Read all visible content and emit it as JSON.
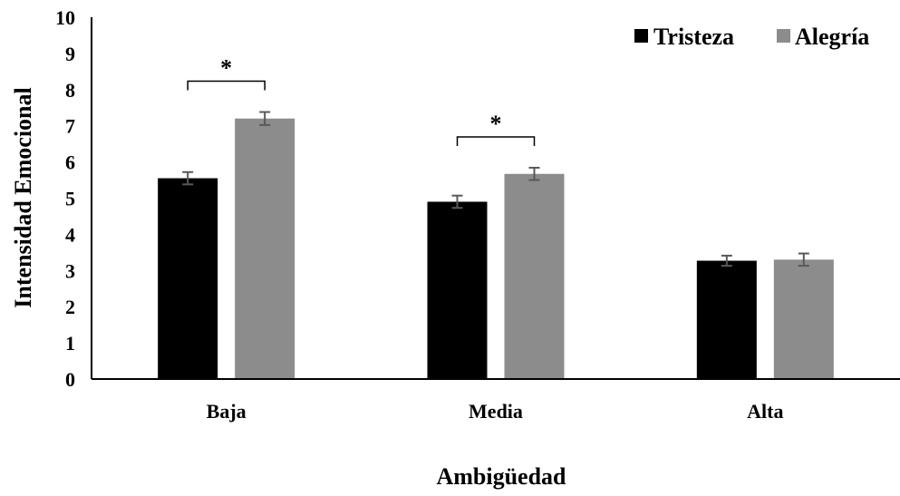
{
  "chart_data": {
    "type": "bar",
    "categories": [
      "Baja",
      "Media",
      "Alta"
    ],
    "series": [
      {
        "name": "Tristeza",
        "color": "#000000",
        "values": [
          5.55,
          4.9,
          3.27
        ],
        "errors": [
          0.17,
          0.17,
          0.14
        ]
      },
      {
        "name": "Alegría",
        "color": "#8c8c8c",
        "values": [
          7.2,
          5.67,
          3.3
        ],
        "errors": [
          0.18,
          0.17,
          0.17
        ]
      }
    ],
    "xlabel": "Ambigüedad",
    "ylabel": "Intensidad Emocional",
    "ylim": [
      0,
      10
    ],
    "yticks": [
      "0",
      "1",
      "2",
      "3",
      "4",
      "5",
      "6",
      "7",
      "8",
      "9",
      "10"
    ],
    "grid": false,
    "legend_position": "top-right",
    "annotations": [
      {
        "text": "*",
        "category": "Baja"
      },
      {
        "text": "*",
        "category": "Media"
      }
    ]
  }
}
